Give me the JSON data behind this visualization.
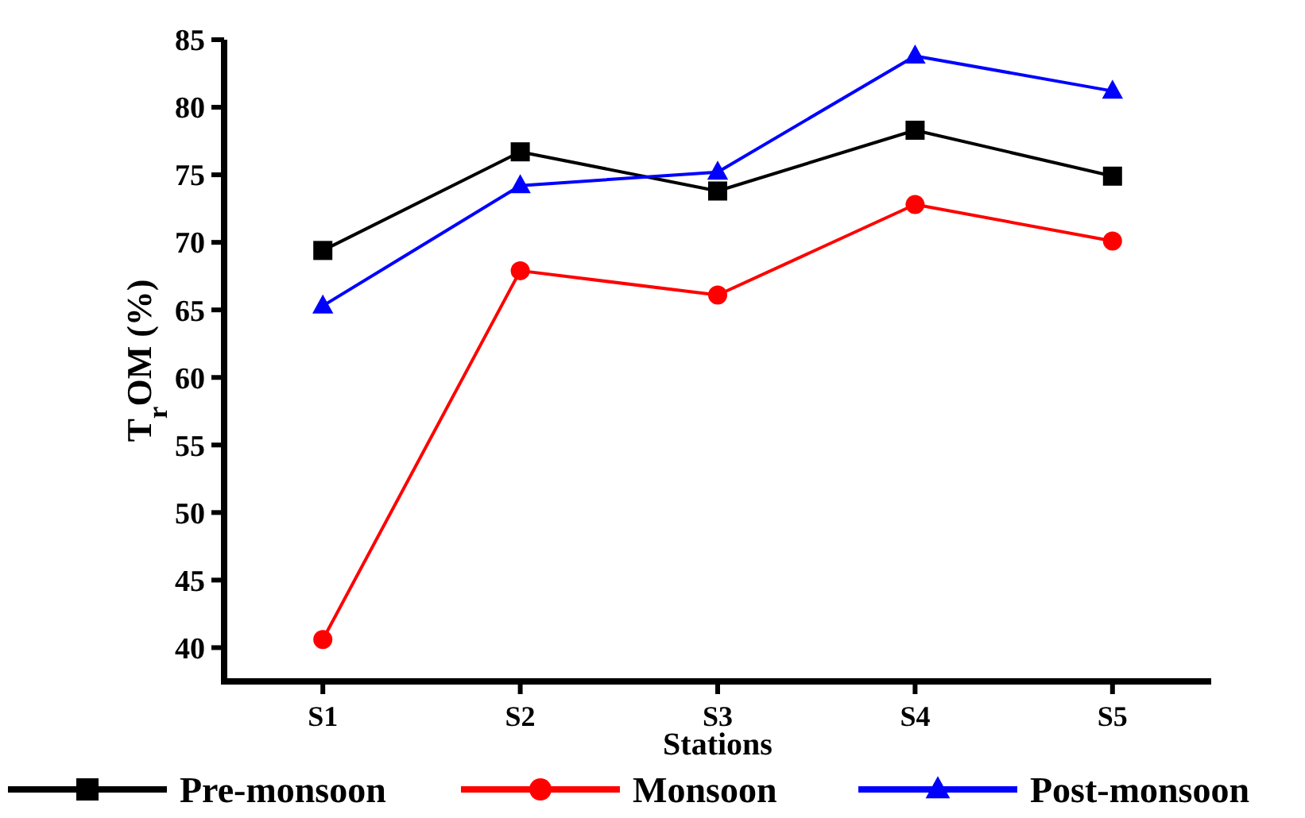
{
  "chart_data": {
    "type": "line",
    "xlabel": "Stations",
    "ylabel": "T$_{r}$OM (%)",
    "categories": [
      "S1",
      "S2",
      "S3",
      "S4",
      "S5"
    ],
    "series": [
      {
        "name": "Pre-monsoon",
        "color": "#000000",
        "marker": "square",
        "values": [
          69.4,
          76.7,
          73.8,
          78.3,
          74.9
        ]
      },
      {
        "name": "Monsoon",
        "color": "#ff0000",
        "marker": "circle",
        "values": [
          40.6,
          67.9,
          66.1,
          72.8,
          70.1
        ]
      },
      {
        "name": "Post-monsoon",
        "color": "#0000ff",
        "marker": "triangle",
        "values": [
          65.3,
          74.2,
          75.2,
          83.8,
          81.2
        ]
      }
    ],
    "ylim": [
      37.5,
      85
    ],
    "yticks": [
      40,
      45,
      50,
      55,
      60,
      65,
      70,
      75,
      80,
      85
    ],
    "grid": false,
    "legend": "bottom",
    "line_style": "solid"
  }
}
